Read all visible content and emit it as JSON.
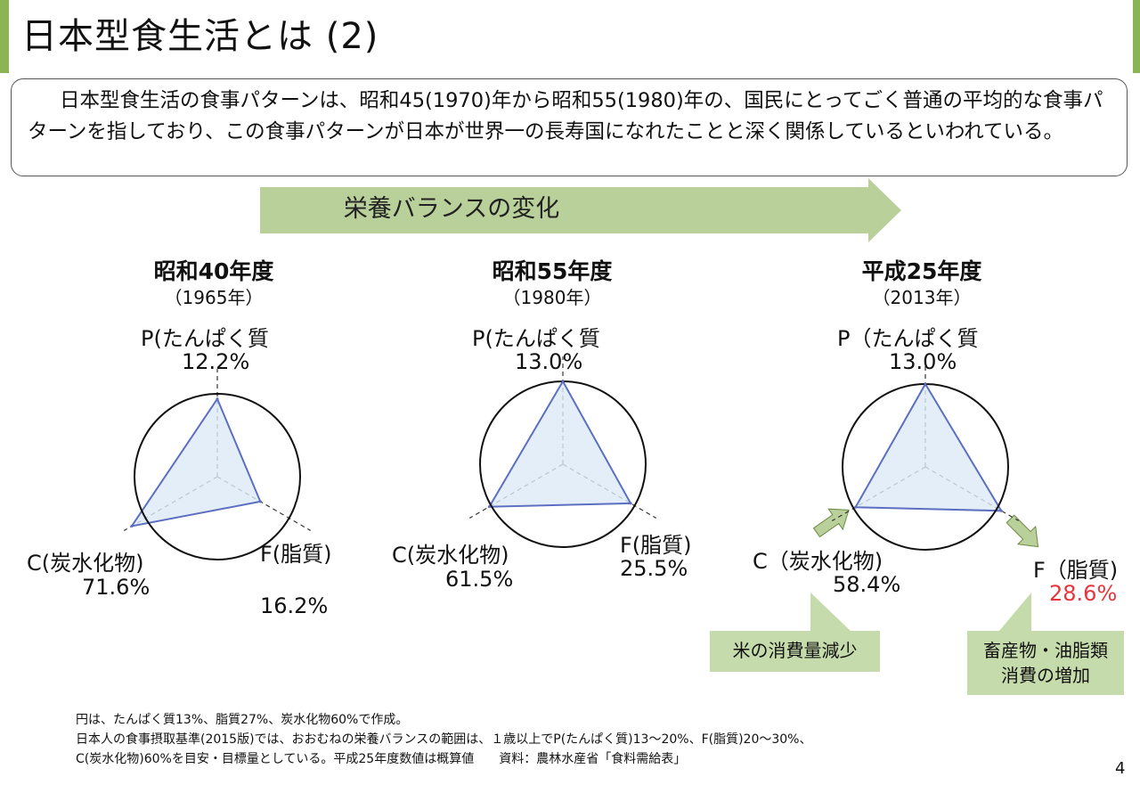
{
  "header": {
    "title": "日本型食生活とは  (2)"
  },
  "intro": "日本型食生活の食事パターンは、昭和45(1970)年から昭和55(1980)年の、国民にとってごく普通の平均的な食事パターンを指しており、この食事パターンが日本が世界一の長寿国になれたことと深く関係しているといわれている。",
  "arrow_label": "栄養バランスの変化",
  "colors": {
    "header": "#8bb552",
    "arrow": "#b9d09a",
    "callout": "#c6dbab",
    "polygon_fill": "#dceaf8",
    "polygon_stroke": "#5c6fc0",
    "highlight": "#e8353b"
  },
  "charts": [
    {
      "title": "昭和40年度",
      "year": "（1965年）",
      "p_label": "P(たんぱく質",
      "f_label": "F(脂質)",
      "c_label": "C(炭水化物)",
      "p_value": "12.2%",
      "f_value": "16.2%",
      "c_value": "71.6%"
    },
    {
      "title": "昭和55年度",
      "year": "（1980年）",
      "p_label": "P(たんぱく質",
      "f_label": "F(脂質)",
      "c_label": "C(炭水化物)",
      "p_value": "13.0%",
      "f_value": "25.5%",
      "c_value": "61.5%"
    },
    {
      "title": "平成25年度",
      "year": "（2013年）",
      "p_label": "P（たんぱく質",
      "f_label": "F（脂質)",
      "c_label": "C（炭水化物)",
      "p_value": "13.0%",
      "f_value": "28.6%",
      "c_value": "58.4%"
    }
  ],
  "chart_data": [
    {
      "type": "radar",
      "title": "昭和40年度",
      "categories": [
        "P(たんぱく質",
        "F(脂質)",
        "C(炭水化物)"
      ],
      "values": [
        12.2,
        16.2,
        71.6
      ],
      "reference": [
        13,
        27,
        60
      ]
    },
    {
      "type": "radar",
      "title": "昭和55年度",
      "categories": [
        "P(たんぱく質",
        "F(脂質)",
        "C(炭水化物)"
      ],
      "values": [
        13.0,
        25.5,
        61.5
      ],
      "reference": [
        13,
        27,
        60
      ]
    },
    {
      "type": "radar",
      "title": "平成25年度",
      "categories": [
        "P（たんぱく質",
        "F（脂質)",
        "C（炭水化物)"
      ],
      "values": [
        13.0,
        28.6,
        58.4
      ],
      "reference": [
        13,
        27,
        60
      ]
    }
  ],
  "callouts": {
    "rice": "米の消費量減少",
    "livestock_line1": "畜産物・油脂類",
    "livestock_line2": "消費の増加"
  },
  "footnotes": {
    "line1": "円は、たんぱく質13%、脂質27%、炭水化物60%で作成。",
    "line2": "日本人の食事摂取基準(2015版)では、おおむねの栄養バランスの範囲は、１歳以上でP(たんぱく質)13～20%、F(脂質)20～30%、",
    "line3": "C(炭水化物)60%を目安・目標量としている。平成25年度数値は概算値　　資料：農林水産省「食料需給表」"
  },
  "page_number": "4"
}
